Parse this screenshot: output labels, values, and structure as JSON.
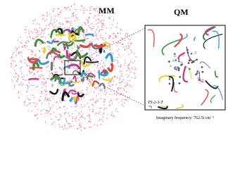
{
  "labels": {
    "mm": "MM",
    "qm": "QM",
    "state": "TS-2-3-T",
    "frequency": "Imaginary frequency: 762.5i cm⁻¹"
  }
}
